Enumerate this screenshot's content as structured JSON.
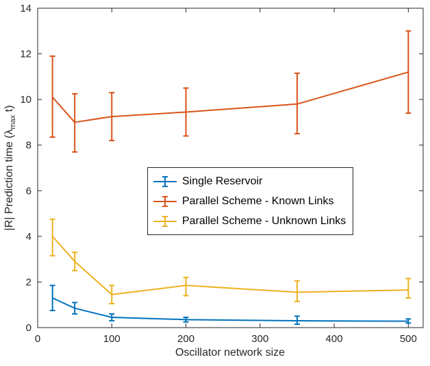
{
  "figure": {
    "xlabel": "Oscillator network size",
    "ylabel_pre": "|R| Prediction time (λ",
    "ylabel_sub": "max",
    "ylabel_post": " t)"
  },
  "chart_data": {
    "type": "line",
    "title": "",
    "xlabel": "Oscillator network size",
    "ylabel": "|R| Prediction time (λ_max t)",
    "x": [
      20,
      50,
      100,
      200,
      350,
      500
    ],
    "xlim": [
      0,
      520
    ],
    "ylim": [
      0,
      14
    ],
    "xticks": [
      0,
      100,
      200,
      300,
      400,
      500
    ],
    "yticks": [
      0,
      2,
      4,
      6,
      8,
      10,
      12,
      14
    ],
    "grid": false,
    "legend_position": "center",
    "axis_color": "#262626",
    "series": [
      {
        "name": "Single Reservoir",
        "color": "#0072BD",
        "values": [
          1.3,
          0.85,
          0.45,
          0.35,
          0.3,
          0.28
        ],
        "err_minus": [
          0.55,
          0.25,
          0.15,
          0.1,
          0.15,
          0.08
        ],
        "err_plus": [
          0.55,
          0.25,
          0.15,
          0.1,
          0.2,
          0.1
        ]
      },
      {
        "name": "Parallel Scheme - Known Links",
        "color": "#D95319",
        "values": [
          10.1,
          9.0,
          9.25,
          9.45,
          9.8,
          11.2
        ],
        "err_minus": [
          1.75,
          1.3,
          1.05,
          1.05,
          1.3,
          1.8
        ],
        "err_plus": [
          1.8,
          1.25,
          1.05,
          1.05,
          1.35,
          1.8
        ]
      },
      {
        "name": "Parallel Scheme - Unknown Links",
        "color": "#EDB120",
        "values": [
          4.0,
          2.9,
          1.45,
          1.85,
          1.55,
          1.65
        ],
        "err_minus": [
          0.85,
          0.4,
          0.4,
          0.45,
          0.4,
          0.35
        ],
        "err_plus": [
          0.75,
          0.4,
          0.4,
          0.35,
          0.5,
          0.5
        ]
      }
    ]
  }
}
